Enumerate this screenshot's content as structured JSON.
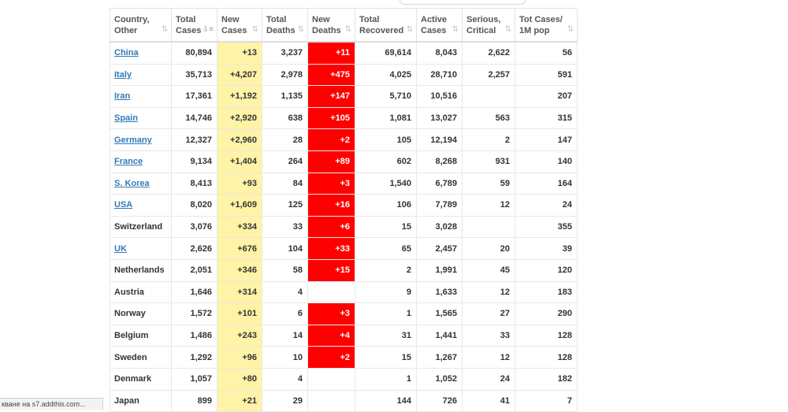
{
  "status_text": "кване на s7.addthis.com...",
  "headers": [
    {
      "line1": "Country,",
      "line2": "Other"
    },
    {
      "line1": "Total",
      "line2": "Cases"
    },
    {
      "line1": "New",
      "line2": "Cases"
    },
    {
      "line1": "Total",
      "line2": "Deaths"
    },
    {
      "line1": "New",
      "line2": "Deaths"
    },
    {
      "line1": "Total",
      "line2": "Recovered"
    },
    {
      "line1": "Active",
      "line2": "Cases"
    },
    {
      "line1": "Serious,",
      "line2": "Critical"
    },
    {
      "line1": "Tot Cases/",
      "line2": "1M pop"
    }
  ],
  "sort_icon": "sort-icon",
  "active_sort_icon": "sort-desc-icon",
  "colors": {
    "new_cases_bg": "#fff3a8",
    "new_deaths_bg": "#ff0000",
    "link": "#337ab7"
  },
  "rows": [
    {
      "country": "China",
      "link": true,
      "total_cases": "80,894",
      "new_cases": "+13",
      "total_deaths": "3,237",
      "new_deaths": "+11",
      "total_recovered": "69,614",
      "active_cases": "8,043",
      "serious": "2,622",
      "per_million": "56"
    },
    {
      "country": "Italy",
      "link": true,
      "total_cases": "35,713",
      "new_cases": "+4,207",
      "total_deaths": "2,978",
      "new_deaths": "+475",
      "total_recovered": "4,025",
      "active_cases": "28,710",
      "serious": "2,257",
      "per_million": "591"
    },
    {
      "country": "Iran",
      "link": true,
      "total_cases": "17,361",
      "new_cases": "+1,192",
      "total_deaths": "1,135",
      "new_deaths": "+147",
      "total_recovered": "5,710",
      "active_cases": "10,516",
      "serious": "",
      "per_million": "207"
    },
    {
      "country": "Spain",
      "link": true,
      "total_cases": "14,746",
      "new_cases": "+2,920",
      "total_deaths": "638",
      "new_deaths": "+105",
      "total_recovered": "1,081",
      "active_cases": "13,027",
      "serious": "563",
      "per_million": "315"
    },
    {
      "country": "Germany",
      "link": true,
      "total_cases": "12,327",
      "new_cases": "+2,960",
      "total_deaths": "28",
      "new_deaths": "+2",
      "total_recovered": "105",
      "active_cases": "12,194",
      "serious": "2",
      "per_million": "147"
    },
    {
      "country": "France",
      "link": true,
      "total_cases": "9,134",
      "new_cases": "+1,404",
      "total_deaths": "264",
      "new_deaths": "+89",
      "total_recovered": "602",
      "active_cases": "8,268",
      "serious": "931",
      "per_million": "140"
    },
    {
      "country": "S. Korea",
      "link": true,
      "total_cases": "8,413",
      "new_cases": "+93",
      "total_deaths": "84",
      "new_deaths": "+3",
      "total_recovered": "1,540",
      "active_cases": "6,789",
      "serious": "59",
      "per_million": "164"
    },
    {
      "country": "USA",
      "link": true,
      "total_cases": "8,020",
      "new_cases": "+1,609",
      "total_deaths": "125",
      "new_deaths": "+16",
      "total_recovered": "106",
      "active_cases": "7,789",
      "serious": "12",
      "per_million": "24"
    },
    {
      "country": "Switzerland",
      "link": false,
      "total_cases": "3,076",
      "new_cases": "+334",
      "total_deaths": "33",
      "new_deaths": "+6",
      "total_recovered": "15",
      "active_cases": "3,028",
      "serious": "",
      "per_million": "355"
    },
    {
      "country": "UK",
      "link": true,
      "total_cases": "2,626",
      "new_cases": "+676",
      "total_deaths": "104",
      "new_deaths": "+33",
      "total_recovered": "65",
      "active_cases": "2,457",
      "serious": "20",
      "per_million": "39"
    },
    {
      "country": "Netherlands",
      "link": false,
      "total_cases": "2,051",
      "new_cases": "+346",
      "total_deaths": "58",
      "new_deaths": "+15",
      "total_recovered": "2",
      "active_cases": "1,991",
      "serious": "45",
      "per_million": "120"
    },
    {
      "country": "Austria",
      "link": false,
      "total_cases": "1,646",
      "new_cases": "+314",
      "total_deaths": "4",
      "new_deaths": "",
      "total_recovered": "9",
      "active_cases": "1,633",
      "serious": "12",
      "per_million": "183"
    },
    {
      "country": "Norway",
      "link": false,
      "total_cases": "1,572",
      "new_cases": "+101",
      "total_deaths": "6",
      "new_deaths": "+3",
      "total_recovered": "1",
      "active_cases": "1,565",
      "serious": "27",
      "per_million": "290"
    },
    {
      "country": "Belgium",
      "link": false,
      "total_cases": "1,486",
      "new_cases": "+243",
      "total_deaths": "14",
      "new_deaths": "+4",
      "total_recovered": "31",
      "active_cases": "1,441",
      "serious": "33",
      "per_million": "128"
    },
    {
      "country": "Sweden",
      "link": false,
      "total_cases": "1,292",
      "new_cases": "+96",
      "total_deaths": "10",
      "new_deaths": "+2",
      "total_recovered": "15",
      "active_cases": "1,267",
      "serious": "12",
      "per_million": "128"
    },
    {
      "country": "Denmark",
      "link": false,
      "total_cases": "1,057",
      "new_cases": "+80",
      "total_deaths": "4",
      "new_deaths": "",
      "total_recovered": "1",
      "active_cases": "1,052",
      "serious": "24",
      "per_million": "182"
    },
    {
      "country": "Japan",
      "link": false,
      "total_cases": "899",
      "new_cases": "+21",
      "total_deaths": "29",
      "new_deaths": "",
      "total_recovered": "144",
      "active_cases": "726",
      "serious": "41",
      "per_million": "7"
    }
  ]
}
